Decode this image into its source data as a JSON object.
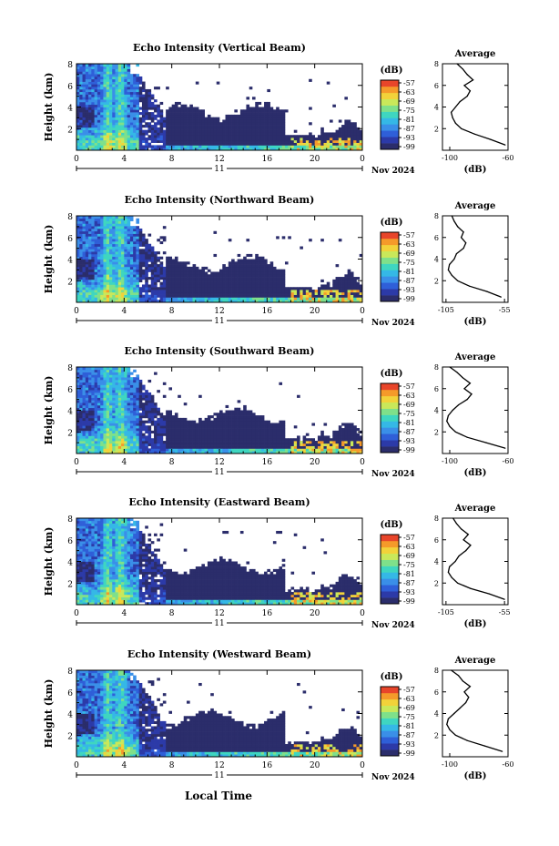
{
  "x_axis_label": "Local Time",
  "panel_ylabel": "Height (km)",
  "colorbar_unit": "(dB)",
  "avg_title": "Average",
  "avg_xlabel": "(dB)",
  "month_label": "Nov 2024",
  "day_label": "11",
  "colorbar_ticks": [
    "-57",
    "-63",
    "-69",
    "-75",
    "-81",
    "-87",
    "-93",
    "-99"
  ],
  "colormap": [
    "#2b2d6b",
    "#2c3aa8",
    "#2f5fd8",
    "#3a8fe8",
    "#35b8e6",
    "#3fd6c0",
    "#7fe08a",
    "#c9e85a",
    "#f2d23a",
    "#f59a2a",
    "#e8452a"
  ],
  "chart_data": [
    {
      "type": "heatmap",
      "title": "Echo Intensity (Vertical Beam)",
      "ylabel": "Height (km)",
      "xlim": [
        0,
        24
      ],
      "ylim": [
        0,
        8
      ],
      "xticks": [
        "0",
        "4",
        "8",
        "12",
        "16",
        "20",
        "0"
      ],
      "yticks": [
        "2",
        "4",
        "6",
        "8"
      ],
      "colorbar": {
        "unit": "dB",
        "min": -99,
        "max": -57
      },
      "average_profile": {
        "title": "Average",
        "xlabel": "(dB)",
        "xlim": [
          -105,
          -60
        ],
        "xticks": [
          "-100",
          "-60"
        ],
        "height_km": [
          0.5,
          1,
          1.5,
          2,
          2.5,
          3,
          3.5,
          4,
          4.5,
          5,
          5.5,
          6,
          6.5,
          7,
          7.5,
          8
        ],
        "db": [
          -62,
          -72,
          -83,
          -92,
          -96,
          -98,
          -99,
          -96,
          -93,
          -88,
          -86,
          -90,
          -84,
          -88,
          -91,
          -95
        ]
      }
    },
    {
      "type": "heatmap",
      "title": "Echo Intensity (Northward Beam)",
      "ylabel": "Height (km)",
      "xlim": [
        0,
        24
      ],
      "ylim": [
        0,
        8
      ],
      "xticks": [
        "0",
        "4",
        "8",
        "12",
        "16",
        "20",
        "0"
      ],
      "yticks": [
        "2",
        "4",
        "6",
        "8"
      ],
      "colorbar": {
        "unit": "dB",
        "min": -99,
        "max": -57
      },
      "average_profile": {
        "title": "Average",
        "xlabel": "(dB)",
        "xlim": [
          -108,
          -52
        ],
        "xticks": [
          "-105",
          "-55"
        ],
        "height_km": [
          0.5,
          1,
          1.5,
          2,
          2.5,
          3,
          3.5,
          4,
          4.5,
          5,
          5.5,
          6,
          6.5,
          7,
          7.5,
          8
        ],
        "db": [
          -58,
          -70,
          -85,
          -95,
          -100,
          -103,
          -102,
          -98,
          -96,
          -90,
          -88,
          -92,
          -90,
          -95,
          -98,
          -100
        ]
      }
    },
    {
      "type": "heatmap",
      "title": "Echo Intensity (Southward Beam)",
      "ylabel": "Height (km)",
      "xlim": [
        0,
        24
      ],
      "ylim": [
        0,
        8
      ],
      "xticks": [
        "0",
        "4",
        "8",
        "12",
        "16",
        "20",
        "0"
      ],
      "yticks": [
        "2",
        "4",
        "6",
        "8"
      ],
      "colorbar": {
        "unit": "dB",
        "min": -99,
        "max": -57
      },
      "average_profile": {
        "title": "Average",
        "xlabel": "(dB)",
        "xlim": [
          -105,
          -60
        ],
        "xticks": [
          "-100",
          "-60"
        ],
        "height_km": [
          0.5,
          1,
          1.5,
          2,
          2.5,
          3,
          3.5,
          4,
          4.5,
          5,
          5.5,
          6,
          6.5,
          7,
          7.5,
          8
        ],
        "db": [
          -62,
          -75,
          -88,
          -96,
          -100,
          -102,
          -101,
          -98,
          -94,
          -88,
          -85,
          -90,
          -86,
          -91,
          -95,
          -100
        ]
      }
    },
    {
      "type": "heatmap",
      "title": "Echo Intensity (Eastward Beam)",
      "ylabel": "Height (km)",
      "xlim": [
        0,
        24
      ],
      "ylim": [
        0,
        8
      ],
      "xticks": [
        "0",
        "4",
        "8",
        "12",
        "16",
        "20",
        "0"
      ],
      "yticks": [
        "2",
        "4",
        "6",
        "8"
      ],
      "colorbar": {
        "unit": "dB",
        "min": -99,
        "max": -57
      },
      "average_profile": {
        "title": "Average",
        "xlabel": "(dB)",
        "xlim": [
          -108,
          -52
        ],
        "xticks": [
          "-105",
          "-55"
        ],
        "height_km": [
          0.5,
          1,
          1.5,
          2,
          2.5,
          3,
          3.5,
          4,
          4.5,
          5,
          5.5,
          6,
          6.5,
          7,
          7.5,
          8
        ],
        "db": [
          -55,
          -68,
          -84,
          -95,
          -100,
          -103,
          -102,
          -97,
          -94,
          -88,
          -84,
          -90,
          -86,
          -92,
          -96,
          -99
        ]
      }
    },
    {
      "type": "heatmap",
      "title": "Echo Intensity (Westward Beam)",
      "ylabel": "Height (km)",
      "xlim": [
        0,
        24
      ],
      "ylim": [
        0,
        8
      ],
      "xticks": [
        "0",
        "4",
        "8",
        "12",
        "16",
        "20",
        "0"
      ],
      "yticks": [
        "2",
        "4",
        "6",
        "8"
      ],
      "colorbar": {
        "unit": "dB",
        "min": -99,
        "max": -57
      },
      "average_profile": {
        "title": "Average",
        "xlabel": "(dB)",
        "xlim": [
          -105,
          -60
        ],
        "xticks": [
          "-100",
          "-60"
        ],
        "height_km": [
          0.5,
          1,
          1.5,
          2,
          2.5,
          3,
          3.5,
          4,
          4.5,
          5,
          5.5,
          6,
          6.5,
          7,
          7.5,
          8
        ],
        "db": [
          -64,
          -76,
          -88,
          -96,
          -100,
          -102,
          -101,
          -97,
          -93,
          -89,
          -87,
          -90,
          -86,
          -91,
          -94,
          -99
        ]
      }
    }
  ]
}
